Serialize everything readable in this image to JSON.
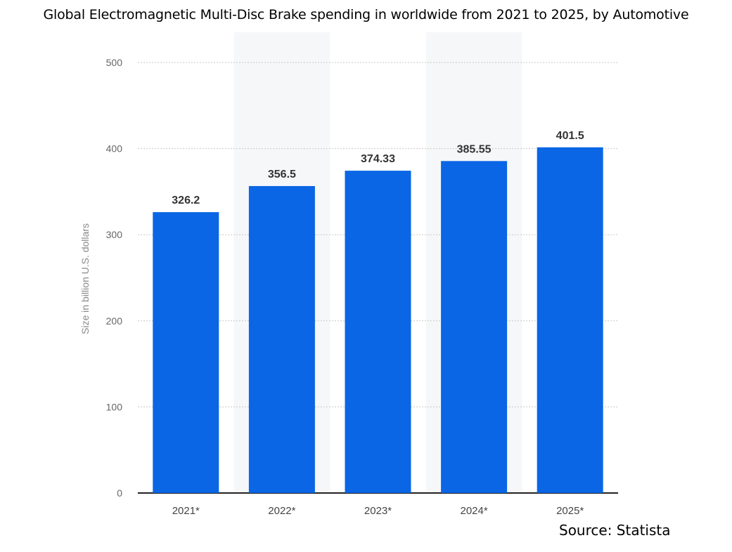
{
  "chart_data": {
    "type": "bar",
    "title": "Global Electromagnetic Multi-Disc Brake spending in worldwide from 2021 to 2025, by Automotive",
    "ylabel": "Size in billion U.S. dollars",
    "xlabel": "",
    "categories": [
      "2021*",
      "2022*",
      "2023*",
      "2024*",
      "2025*"
    ],
    "values": [
      326.2,
      356.5,
      374.33,
      385.55,
      401.5
    ],
    "value_labels": [
      "326.2",
      "356.5",
      "374.33",
      "385.55",
      "401.5"
    ],
    "ylim": [
      0,
      500
    ],
    "yticks": [
      0,
      100,
      200,
      300,
      400,
      500
    ],
    "grid": true,
    "bar_color": "#0a66e4",
    "source": "Source: Statista"
  }
}
